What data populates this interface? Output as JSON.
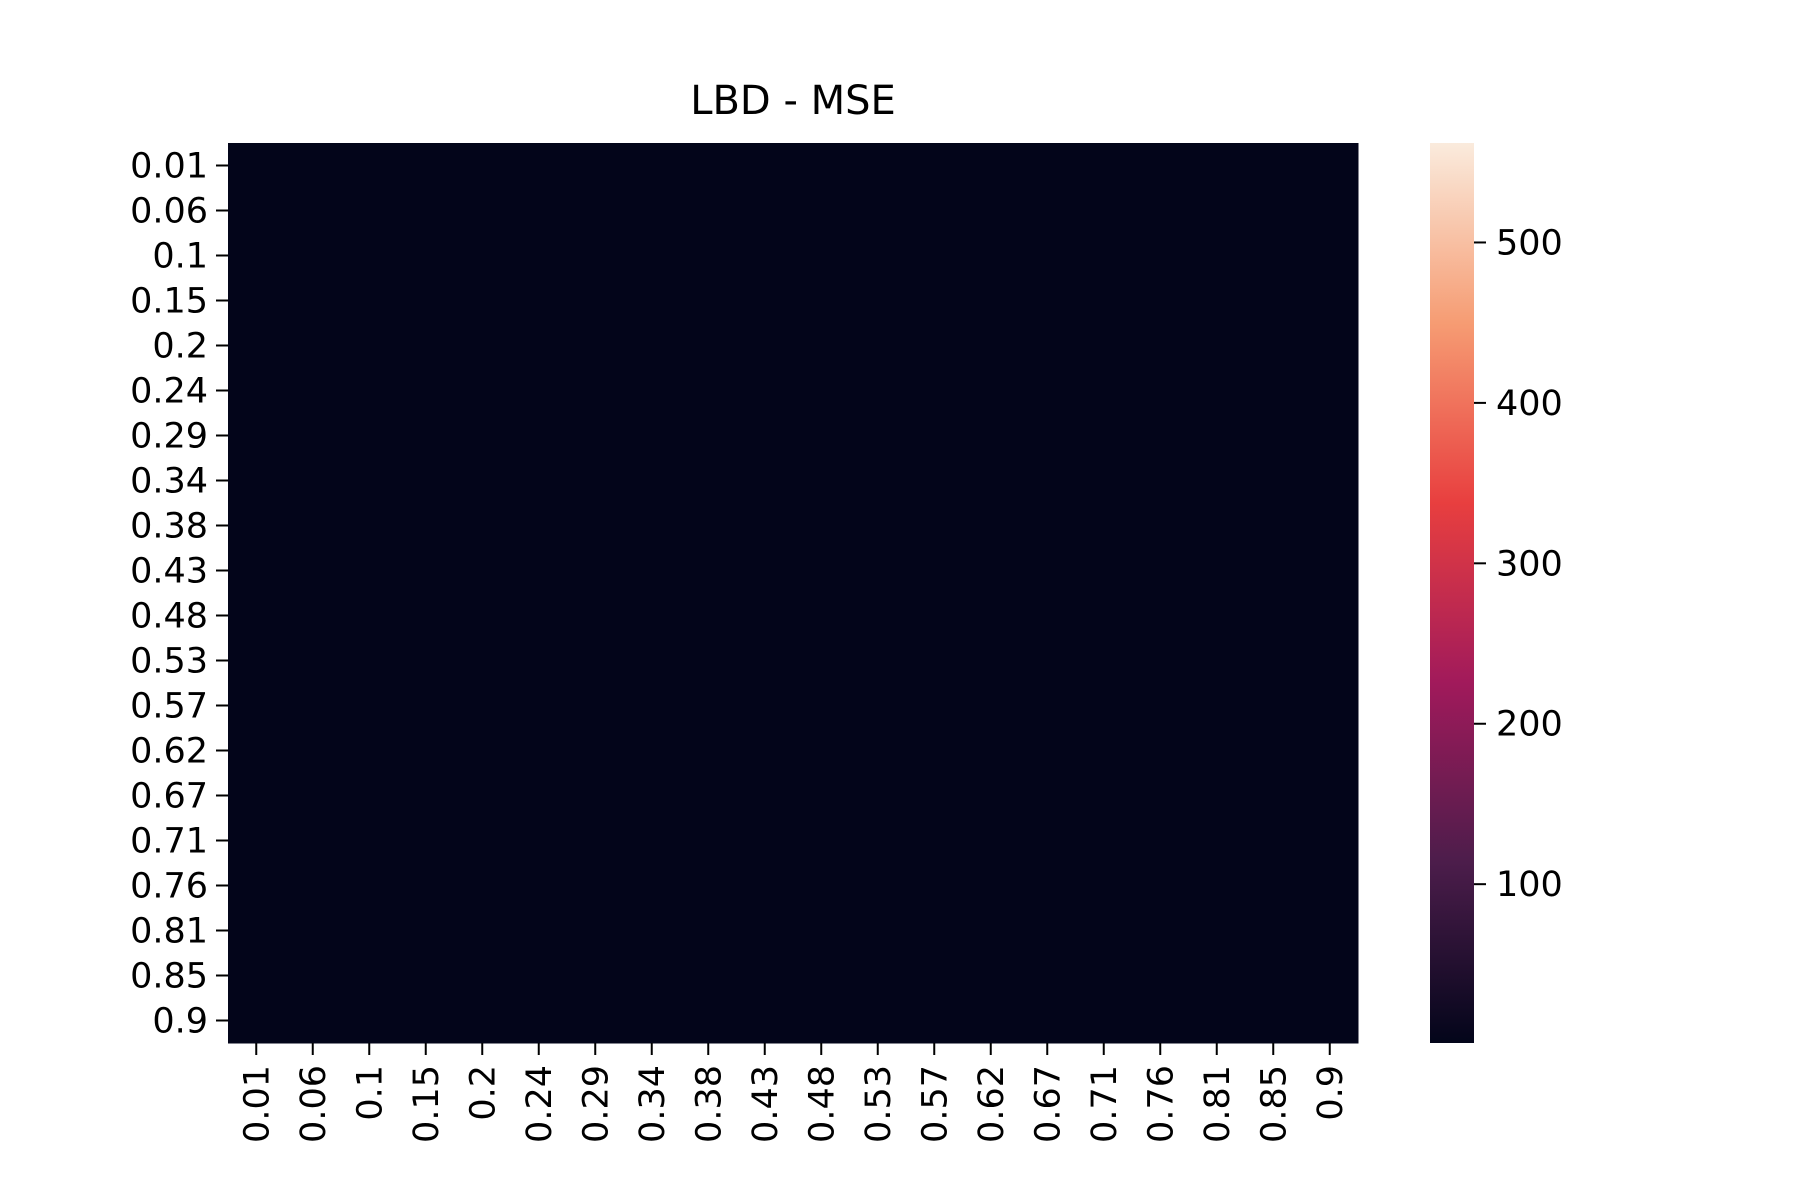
{
  "chart_data": {
    "type": "heatmap",
    "title": "LBD - MSE",
    "x_categories": [
      "0.01",
      "0.06",
      "0.1",
      "0.15",
      "0.2",
      "0.24",
      "0.29",
      "0.34",
      "0.38",
      "0.43",
      "0.48",
      "0.53",
      "0.57",
      "0.62",
      "0.67",
      "0.71",
      "0.76",
      "0.81",
      "0.85",
      "0.9"
    ],
    "y_categories": [
      "0.01",
      "0.06",
      "0.1",
      "0.15",
      "0.2",
      "0.24",
      "0.29",
      "0.34",
      "0.38",
      "0.43",
      "0.48",
      "0.53",
      "0.57",
      "0.62",
      "0.67",
      "0.71",
      "0.76",
      "0.81",
      "0.85",
      "0.9"
    ],
    "values": [
      [
        1,
        1,
        1,
        1,
        1,
        1,
        1,
        1,
        1,
        1,
        1,
        1,
        1,
        1,
        1,
        1,
        1,
        1,
        1,
        1
      ],
      [
        1,
        1,
        1,
        1,
        1,
        1,
        1,
        1,
        1,
        1,
        1,
        1,
        1,
        1,
        1,
        1,
        1,
        1,
        1,
        1
      ],
      [
        1,
        1,
        1,
        1,
        1,
        1,
        1,
        1,
        1,
        1,
        1,
        1,
        1,
        1,
        1,
        1,
        1,
        1,
        1,
        1
      ],
      [
        1,
        1,
        1,
        1,
        1,
        1,
        1,
        1,
        1,
        1,
        1,
        1,
        1,
        1,
        1,
        1,
        1,
        1,
        1,
        1
      ],
      [
        1,
        1,
        1,
        1,
        1,
        1,
        1,
        1,
        1,
        1,
        1,
        1,
        1,
        1,
        1,
        1,
        1,
        1,
        1,
        1
      ],
      [
        1,
        1,
        1,
        1,
        1,
        1,
        1,
        1,
        1,
        1,
        1,
        1,
        1,
        1,
        1,
        1,
        1,
        1,
        1,
        1
      ],
      [
        1,
        1,
        1,
        1,
        1,
        1,
        1,
        1,
        1,
        1,
        1,
        1,
        1,
        1,
        1,
        1,
        1,
        1,
        1,
        1
      ],
      [
        1,
        1,
        1,
        1,
        1,
        1,
        1,
        1,
        1,
        1,
        1,
        1,
        1,
        1,
        1,
        1,
        1,
        1,
        1,
        1
      ],
      [
        1,
        1,
        1,
        1,
        1,
        1,
        1,
        1,
        1,
        1,
        1,
        1,
        1,
        1,
        1,
        1,
        1,
        1,
        1,
        1
      ],
      [
        1,
        1,
        1,
        1,
        1,
        1,
        1,
        1,
        1,
        1,
        1,
        1,
        1,
        1,
        1,
        1,
        1,
        1,
        1,
        1
      ],
      [
        1,
        1,
        1,
        1,
        1,
        1,
        1,
        1,
        1,
        1,
        1,
        1,
        1,
        1,
        1,
        1,
        1,
        1,
        1,
        1
      ],
      [
        1,
        1,
        1,
        1,
        1,
        1,
        1,
        1,
        1,
        1,
        1,
        1,
        1,
        1,
        1,
        1,
        1,
        1,
        1,
        1
      ],
      [
        1,
        1,
        1,
        1,
        1,
        1,
        1,
        1,
        1,
        1,
        1,
        1,
        1,
        1,
        1,
        1,
        1,
        1,
        1,
        1
      ],
      [
        1,
        1,
        1,
        1,
        1,
        1,
        1,
        1,
        1,
        1,
        1,
        1,
        1,
        1,
        1,
        1,
        1,
        1,
        1,
        1
      ],
      [
        1,
        1,
        1,
        1,
        1,
        1,
        1,
        1,
        1,
        1,
        1,
        1,
        1,
        1,
        1,
        1,
        1,
        1,
        1,
        1
      ],
      [
        1,
        1,
        1,
        1,
        1,
        1,
        1,
        1,
        1,
        1,
        1,
        1,
        1,
        1,
        1,
        1,
        1,
        1,
        1,
        1
      ],
      [
        1,
        1,
        1,
        1,
        1,
        1,
        1,
        1,
        1,
        1,
        1,
        1,
        1,
        1,
        1,
        1,
        1,
        1,
        1,
        1
      ],
      [
        1,
        1,
        1,
        1,
        1,
        1,
        1,
        1,
        1,
        1,
        1,
        1,
        1,
        1,
        1,
        1,
        1,
        1,
        1,
        1
      ],
      [
        1,
        1,
        1,
        1,
        1,
        1,
        1,
        1,
        1,
        1,
        1,
        1,
        1,
        1,
        1,
        1,
        1,
        1,
        1,
        1
      ],
      [
        1,
        1,
        1,
        1,
        1,
        1,
        1,
        1,
        1,
        1,
        1,
        1,
        1,
        1,
        1,
        1,
        1,
        1,
        1,
        1
      ]
    ],
    "colormap": "rocket",
    "clim": [
      1,
      562
    ],
    "cticks": [
      100,
      200,
      300,
      400,
      500
    ]
  }
}
